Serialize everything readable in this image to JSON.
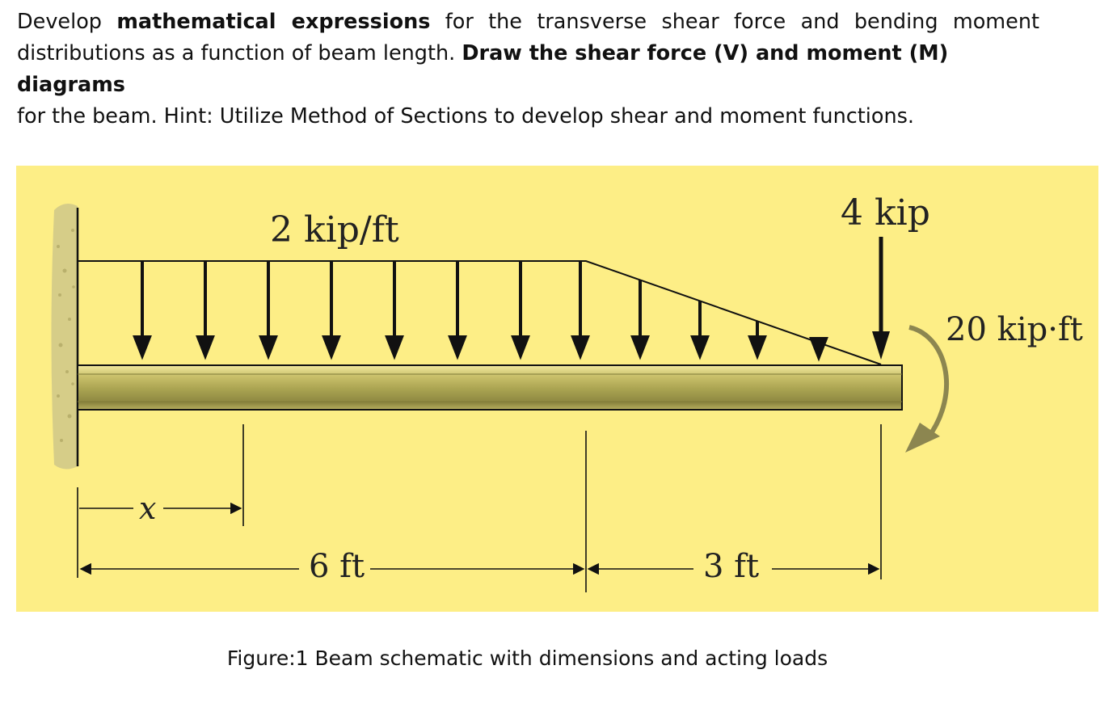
{
  "problem": {
    "t1": "Develop ",
    "b1": "mathematical expressions",
    "t2": " for the transverse shear force and bending moment",
    "t3": "distributions as a function of beam length. ",
    "b2": "Draw the shear force (V) and moment (M) diagrams",
    "t4": "for the beam. Hint: Utilize Method of Sections to develop shear and moment functions."
  },
  "figure": {
    "distributed_load": "2 kip/ft",
    "point_load": "4 kip",
    "moment": "20 kip·ft",
    "x_label": "x",
    "dim_left": "6 ft",
    "dim_right": "3 ft",
    "colors": {
      "background": "#fdee86",
      "beam": "#a8a250",
      "moment_arrow": "#8c8650",
      "wall": "#d6cd88"
    }
  },
  "caption": "Figure:1 Beam schematic with dimensions and acting loads"
}
